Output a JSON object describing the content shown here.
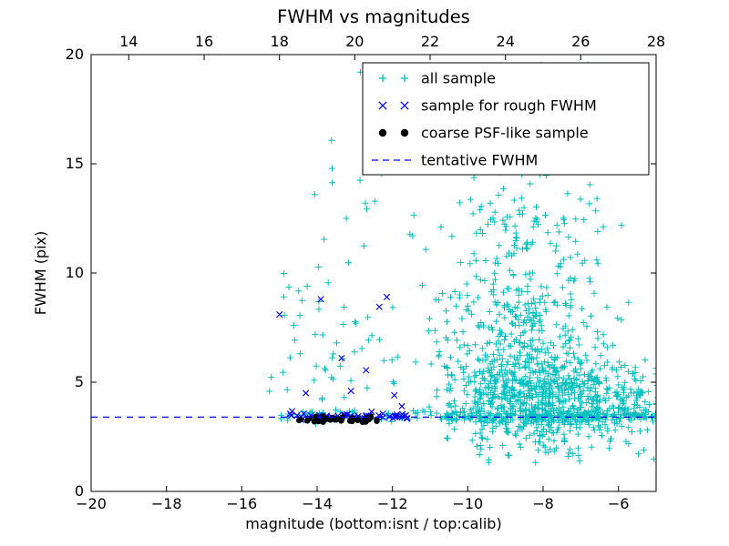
{
  "chart_data": {
    "type": "scatter",
    "title": "FWHM vs magnitudes",
    "xlabel": "magnitude (bottom:isnt / top:calib)",
    "ylabel": "FWHM (pix)",
    "xlim": [
      -20,
      -5
    ],
    "ylim": [
      0,
      20
    ],
    "xlim_top": [
      13,
      28
    ],
    "xticks": [
      -20,
      -18,
      -16,
      -14,
      -12,
      -10,
      -8,
      -6
    ],
    "xticks_top": [
      14,
      16,
      18,
      20,
      22,
      24,
      26,
      28
    ],
    "yticks": [
      0,
      5,
      10,
      15,
      20
    ],
    "grid": false,
    "legend_position": "upper right",
    "tentative_fwhm": 3.4,
    "colors": {
      "all_sample": "#00bfbf",
      "rough_fwhm_sample": "#0000ff",
      "psf_like_sample": "#000000",
      "tentative_line": "#0000ff",
      "axis": "#000000",
      "background": "#ffffff"
    },
    "series": [
      {
        "name": "all sample",
        "marker": "plus",
        "color": "#00bfbf",
        "points": [
          [
            -12.85,
            19.2
          ]
        ],
        "clusters": [
          {
            "type": "hband",
            "n": 70,
            "x": [
              -15.0,
              -11.0
            ],
            "cy": 3.45,
            "sy": 0.13
          },
          {
            "type": "gauss",
            "n": 40,
            "cx": -13.3,
            "cy": 6.2,
            "sx": 0.9,
            "sy": 1.3,
            "clipx": [
              -15.1,
              -11.0
            ],
            "clipy": [
              3.9,
              20
            ]
          },
          {
            "type": "uniform",
            "n": 22,
            "x": [
              -14.9,
              -11.1
            ],
            "y": [
              8.0,
              13.8
            ]
          },
          {
            "type": "uniform",
            "n": 10,
            "x": [
              -13.7,
              -11.2
            ],
            "y": [
              13.8,
              19.5
            ]
          },
          {
            "type": "uniform",
            "n": 6,
            "x": [
              -15.35,
              -14.55
            ],
            "y": [
              4.5,
              8.3
            ]
          },
          {
            "type": "uniform",
            "n": 22,
            "x": [
              -11.05,
              -10.25
            ],
            "y": [
              3.8,
              9.5
            ]
          },
          {
            "type": "gauss",
            "n": 650,
            "cx": -8.2,
            "cy": 4.3,
            "sx": 1.15,
            "sy": 1.1,
            "clipx": [
              -10.9,
              -4.95
            ],
            "clipy": [
              1.6,
              20
            ]
          },
          {
            "type": "gauss",
            "n": 260,
            "cx": -8.4,
            "cy": 7.0,
            "sx": 1.05,
            "sy": 1.8,
            "clipx": [
              -10.9,
              -5.0
            ],
            "clipy": [
              1.6,
              20
            ]
          },
          {
            "type": "gauss",
            "n": 130,
            "cx": -8.5,
            "cy": 11.0,
            "sx": 1.0,
            "sy": 2.0,
            "clipx": [
              -10.9,
              -5.2
            ],
            "clipy": [
              1.6,
              19.9
            ]
          },
          {
            "type": "uniform",
            "n": 45,
            "x": [
              -10.3,
              -6.6
            ],
            "y": [
              14.0,
              19.9
            ]
          },
          {
            "type": "hband",
            "n": 190,
            "x": [
              -11.0,
              -5.0
            ],
            "cy": 3.45,
            "sy": 0.13
          },
          {
            "type": "uniform",
            "n": 30,
            "x": [
              -9.9,
              -5.05
            ],
            "y": [
              1.3,
              2.95
            ]
          },
          {
            "type": "gauss",
            "n": 80,
            "cx": -5.9,
            "cy": 4.0,
            "sx": 0.5,
            "sy": 0.7,
            "clipx": [
              -6.9,
              -4.92
            ],
            "clipy": [
              2.2,
              7.0
            ]
          },
          {
            "type": "uniform",
            "n": 25,
            "x": [
              -5.6,
              -4.92
            ],
            "y": [
              3.1,
              4.8
            ]
          }
        ]
      },
      {
        "name": "sample for rough FWHM",
        "marker": "x",
        "color": "#0000ff",
        "points": [
          [
            -15.0,
            8.1
          ],
          [
            -13.9,
            8.8
          ],
          [
            -12.15,
            8.9
          ],
          [
            -12.35,
            8.45
          ],
          [
            -13.35,
            6.1
          ],
          [
            -12.7,
            5.55
          ],
          [
            -14.3,
            4.5
          ],
          [
            -13.1,
            4.6
          ],
          [
            -11.95,
            4.4
          ],
          [
            -11.75,
            3.9
          ]
        ],
        "clusters": [
          {
            "type": "hband",
            "n": 55,
            "x": [
              -14.75,
              -11.55
            ],
            "cy": 3.42,
            "sy": 0.08
          }
        ]
      },
      {
        "name": "coarse PSF-like sample",
        "marker": "dot",
        "color": "#000000",
        "points": [],
        "clusters": [
          {
            "type": "hband",
            "n": 22,
            "x": [
              -14.55,
              -13.3
            ],
            "cy": 3.3,
            "sy": 0.06
          },
          {
            "type": "hband",
            "n": 20,
            "x": [
              -13.15,
              -12.4
            ],
            "cy": 3.3,
            "sy": 0.06
          }
        ]
      },
      {
        "name": "tentative FWHM",
        "marker": "dashed-line",
        "color": "#0000ff",
        "y": 3.4
      }
    ]
  }
}
